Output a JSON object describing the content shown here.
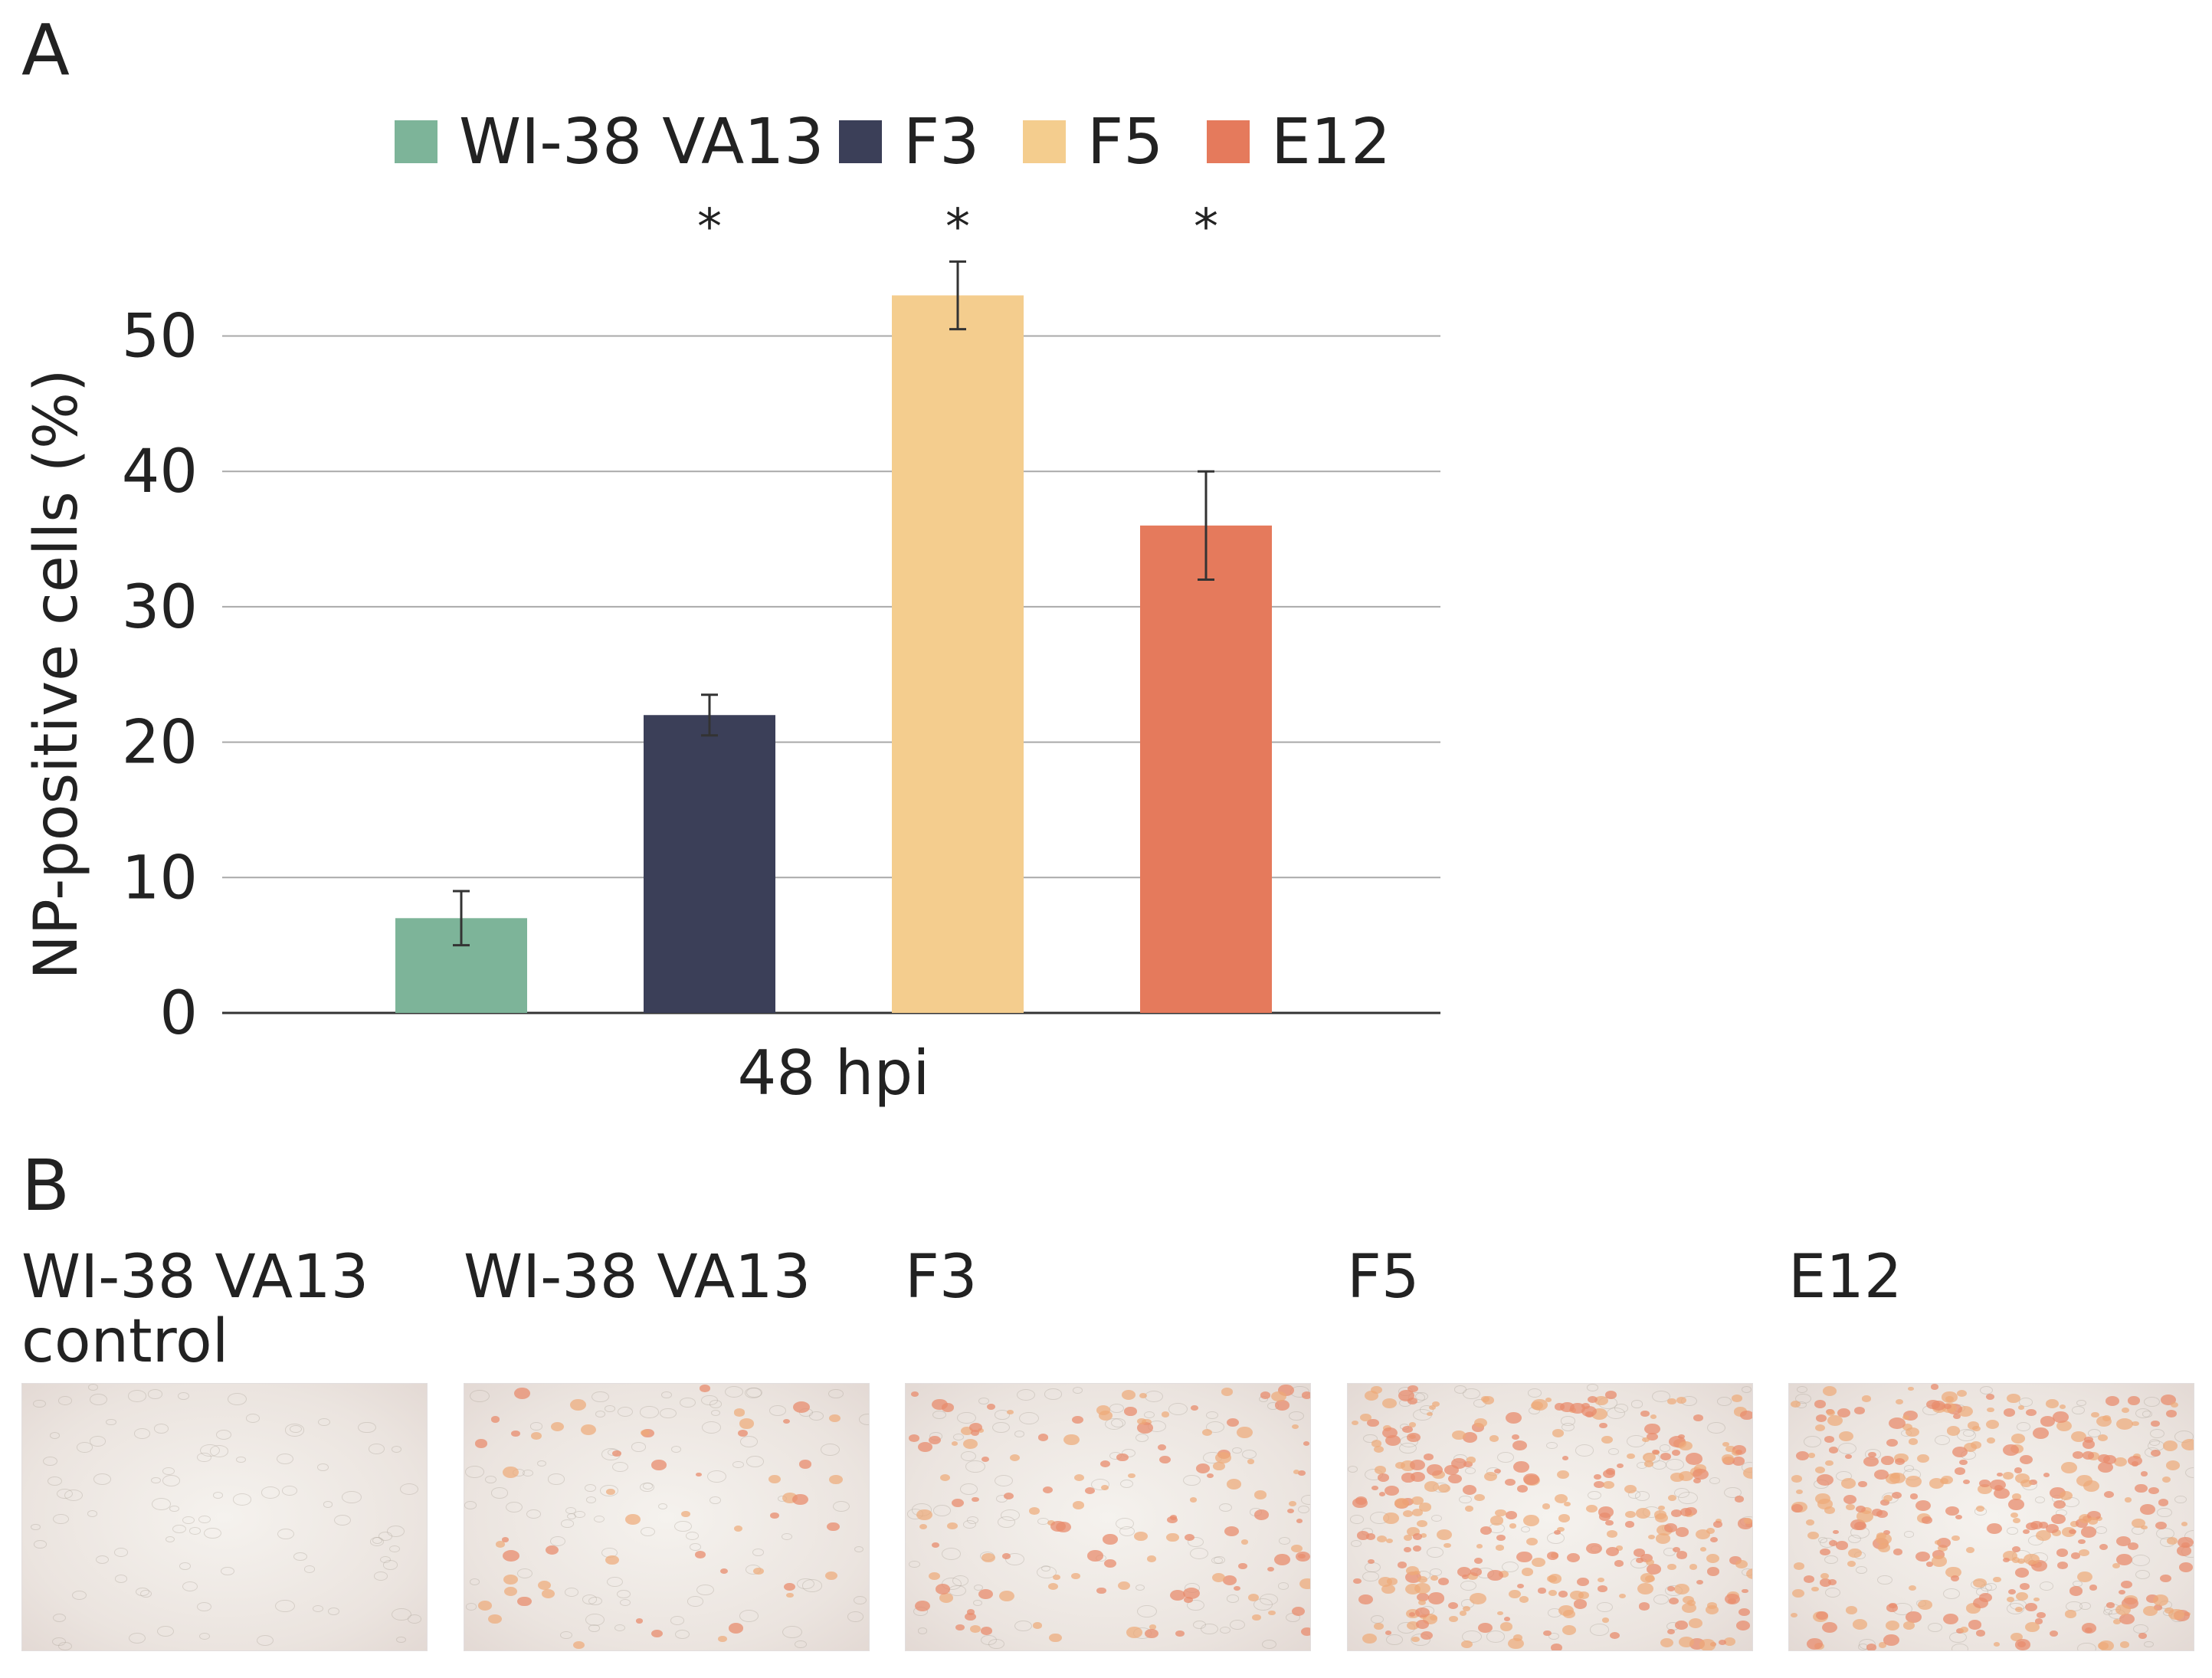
{
  "panel_a_label": "A",
  "panel_b_label": "B",
  "chart_data": {
    "type": "bar",
    "ylabel": "NP-positive cells (%)",
    "xlabel": "48 hpi",
    "ylim": [
      0,
      50
    ],
    "yticks": [
      0,
      10,
      20,
      30,
      40,
      50
    ],
    "grid": true,
    "legend_position": "top",
    "series": [
      {
        "name": "WI-38 VA13",
        "value": 7,
        "error": 2,
        "color": "#7db499",
        "significance": ""
      },
      {
        "name": "F3",
        "value": 22,
        "error": 1.5,
        "color": "#3b3f58",
        "significance": "*"
      },
      {
        "name": "F5",
        "value": 53,
        "error": 2.5,
        "color": "#f4cd8e",
        "significance": "*"
      },
      {
        "name": "E12",
        "value": 36,
        "error": 4,
        "color": "#e57a5c",
        "significance": "*"
      }
    ]
  },
  "photos": [
    {
      "label": "WI-38 VA13\ncontrol",
      "stain_level": "none"
    },
    {
      "label": "WI-38 VA13",
      "stain_level": "low"
    },
    {
      "label": "F3",
      "stain_level": "medium"
    },
    {
      "label": "F5",
      "stain_level": "high"
    },
    {
      "label": "E12",
      "stain_level": "high"
    }
  ]
}
